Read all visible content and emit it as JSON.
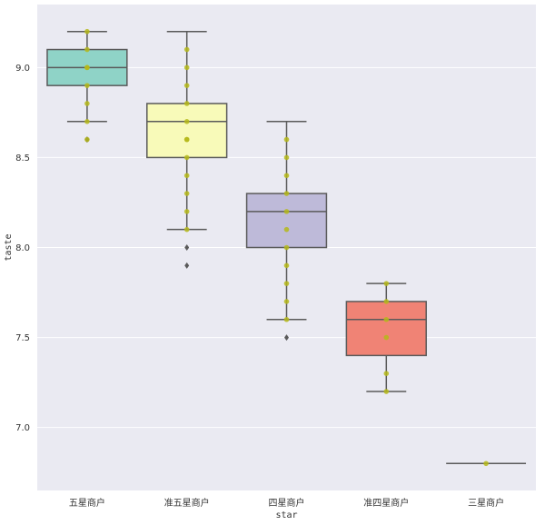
{
  "chart_data": {
    "type": "box",
    "title": "",
    "xlabel": "star",
    "ylabel": "taste",
    "ylim": [
      6.65,
      9.35
    ],
    "yticks": [
      7.0,
      7.5,
      8.0,
      8.5,
      9.0
    ],
    "ytick_labels": [
      "7.0",
      "7.5",
      "8.0",
      "8.5",
      "9.0"
    ],
    "grid": true,
    "categories": [
      "五星商户",
      "准五星商户",
      "四星商户",
      "准四星商户",
      "三星商户"
    ],
    "colors": [
      "#8fd3c7",
      "#f8fab9",
      "#bebad9",
      "#f08375",
      "#7fb0d3"
    ],
    "strip_color": "#b5b81a",
    "boxes": [
      {
        "q1": 8.9,
        "median": 9.0,
        "q3": 9.1,
        "whisker_low": 8.7,
        "whisker_high": 9.2,
        "fliers": [
          8.6
        ],
        "points": [
          9.2,
          9.1,
          9.0,
          9.0,
          8.9,
          8.8,
          8.7,
          8.6
        ]
      },
      {
        "q1": 8.5,
        "median": 8.7,
        "q3": 8.8,
        "whisker_low": 8.1,
        "whisker_high": 9.2,
        "fliers": [
          8.0,
          7.9
        ],
        "points": [
          9.1,
          9.0,
          8.9,
          8.8,
          8.7,
          8.6,
          8.6,
          8.5,
          8.4,
          8.3,
          8.2,
          8.1
        ]
      },
      {
        "q1": 8.0,
        "median": 8.2,
        "q3": 8.3,
        "whisker_low": 7.6,
        "whisker_high": 8.7,
        "fliers": [
          7.5
        ],
        "points": [
          8.6,
          8.5,
          8.4,
          8.3,
          8.2,
          8.1,
          8.0,
          7.9,
          7.8,
          7.7,
          7.6
        ]
      },
      {
        "q1": 7.4,
        "median": 7.6,
        "q3": 7.7,
        "whisker_low": 7.2,
        "whisker_high": 7.8,
        "fliers": [],
        "points": [
          7.8,
          7.7,
          7.6,
          7.5,
          7.3,
          7.2
        ]
      },
      {
        "q1": 6.8,
        "median": 6.8,
        "q3": 6.8,
        "whisker_low": 6.8,
        "whisker_high": 6.8,
        "fliers": [],
        "points": [
          6.8
        ]
      }
    ]
  }
}
